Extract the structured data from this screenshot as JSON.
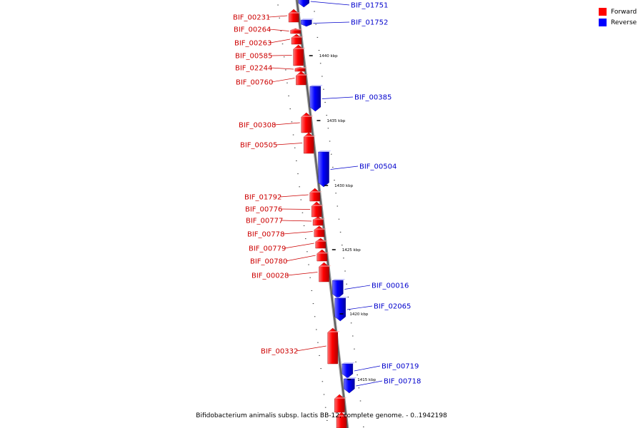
{
  "legend": {
    "forward": {
      "label": "Forward",
      "color": "#ff0000"
    },
    "reverse": {
      "label": "Reverse",
      "color": "#0000ff"
    }
  },
  "caption": "Bifidobacterium animalis subsp. lactis BB-12, complete genome. - 0..1942198",
  "ticks": [
    "1440 kbp",
    "1435 kbp",
    "1430 kbp",
    "1425 kbp",
    "1420 kbp",
    "1415 kbp"
  ],
  "genes": [
    {
      "name": "BIF_01751",
      "strand": "reverse"
    },
    {
      "name": "BIF_01752",
      "strand": "reverse"
    },
    {
      "name": "BIF_00231",
      "strand": "forward"
    },
    {
      "name": "BIF_00264",
      "strand": "forward"
    },
    {
      "name": "BIF_00263",
      "strand": "forward"
    },
    {
      "name": "BIF_00585",
      "strand": "forward"
    },
    {
      "name": "BIF_02244",
      "strand": "forward"
    },
    {
      "name": "BIF_00760",
      "strand": "forward"
    },
    {
      "name": "BIF_00385",
      "strand": "reverse"
    },
    {
      "name": "BIF_00308",
      "strand": "forward"
    },
    {
      "name": "BIF_00505",
      "strand": "forward"
    },
    {
      "name": "BIF_00504",
      "strand": "reverse"
    },
    {
      "name": "BIF_01792",
      "strand": "forward"
    },
    {
      "name": "BIF_00776",
      "strand": "forward"
    },
    {
      "name": "BIF_00777",
      "strand": "forward"
    },
    {
      "name": "BIF_00778",
      "strand": "forward"
    },
    {
      "name": "BIF_00779",
      "strand": "forward"
    },
    {
      "name": "BIF_00780",
      "strand": "forward"
    },
    {
      "name": "BIF_00028",
      "strand": "forward"
    },
    {
      "name": "BIF_00016",
      "strand": "reverse"
    },
    {
      "name": "BIF_02065",
      "strand": "reverse"
    },
    {
      "name": "BIF_00332",
      "strand": "forward"
    },
    {
      "name": "BIF_00719",
      "strand": "reverse"
    },
    {
      "name": "BIF_00718",
      "strand": "reverse"
    }
  ]
}
